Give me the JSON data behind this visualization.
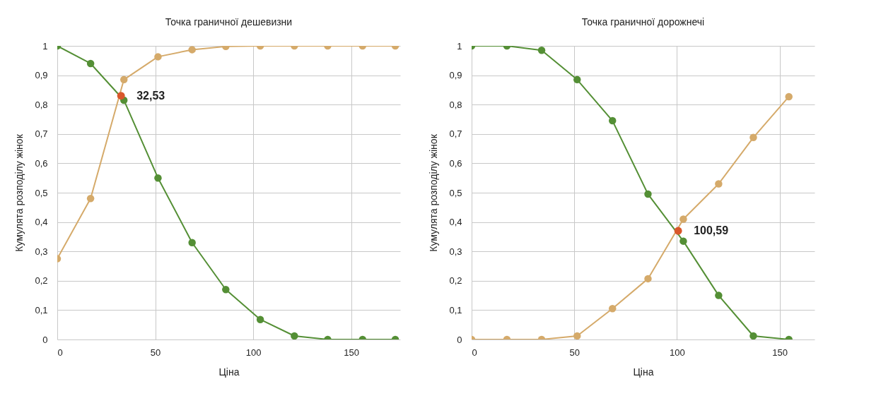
{
  "chart_data": [
    {
      "type": "line",
      "title": "Точка граничної дешевизни",
      "xlabel": "Ціна",
      "ylabel": "Кумулята розподілу жінок",
      "xlim": [
        0,
        175
      ],
      "xticks": [
        0,
        50,
        100,
        150
      ],
      "ylim": [
        0,
        1
      ],
      "yticks": [
        0,
        {
          "value": 0.1,
          "label": "0,1"
        },
        {
          "value": 0.2,
          "label": "0,2"
        },
        {
          "value": 0.3,
          "label": "0,3"
        },
        {
          "value": 0.4,
          "label": "0,4"
        },
        {
          "value": 0.5,
          "label": "0,5"
        },
        {
          "value": 0.6,
          "label": "0,6"
        },
        {
          "value": 0.7,
          "label": "0,7"
        },
        {
          "value": 0.8,
          "label": "0,8"
        },
        {
          "value": 0.9,
          "label": "0,9"
        },
        1
      ],
      "grid": true,
      "marker": "circle",
      "series": [
        {
          "color": "#548f35",
          "x": [
            0,
            17,
            34,
            51.4,
            68.8,
            86,
            103.6,
            121,
            138,
            155.8,
            172.5
          ],
          "values": [
            1,
            0.94,
            0.815,
            0.55,
            0.33,
            0.17,
            0.068,
            0.012,
            0,
            0,
            0
          ]
        },
        {
          "color": "#d5aa6a",
          "x": [
            0,
            17,
            34,
            51.4,
            68.8,
            86,
            103.6,
            121,
            138,
            155.8,
            172.5
          ],
          "values": [
            0.275,
            0.48,
            0.885,
            0.963,
            0.987,
            0.998,
            1,
            1,
            1,
            1,
            1
          ]
        },
        {
          "type": "scatter",
          "color": "#d9572b",
          "x": [
            32.53
          ],
          "values": [
            0.83
          ]
        }
      ],
      "annotations": [
        {
          "text": "32,53",
          "x": 32.53,
          "y": 0.83
        }
      ]
    },
    {
      "type": "line",
      "title": "Точка граничної дорожнечі",
      "xlabel": "Ціна",
      "ylabel": "Кумулята розподілу жінок",
      "xlim": [
        0,
        167
      ],
      "xticks": [
        0,
        50,
        100,
        150
      ],
      "ylim": [
        0,
        1
      ],
      "yticks": [
        0,
        {
          "value": 0.1,
          "label": "0,1"
        },
        {
          "value": 0.2,
          "label": "0,2"
        },
        {
          "value": 0.3,
          "label": "0,3"
        },
        {
          "value": 0.4,
          "label": "0,4"
        },
        {
          "value": 0.5,
          "label": "0,5"
        },
        {
          "value": 0.6,
          "label": "0,6"
        },
        {
          "value": 0.7,
          "label": "0,7"
        },
        {
          "value": 0.8,
          "label": "0,8"
        },
        {
          "value": 0.9,
          "label": "0,9"
        },
        1
      ],
      "grid": true,
      "marker": "circle",
      "series": [
        {
          "color": "#548f35",
          "x": [
            0,
            17.2,
            34.1,
            51.4,
            68.6,
            85.9,
            103.1,
            120.3,
            137.2,
            154.5
          ],
          "values": [
            1,
            1,
            0.985,
            0.885,
            0.745,
            0.495,
            0.335,
            0.15,
            0.012,
            0
          ]
        },
        {
          "color": "#d5aa6a",
          "x": [
            0,
            17.2,
            34.1,
            51.4,
            68.6,
            85.9,
            103.1,
            120.3,
            137.2,
            154.5
          ],
          "values": [
            0,
            0,
            0,
            0.012,
            0.105,
            0.207,
            0.41,
            0.53,
            0.688,
            0.827
          ]
        },
        {
          "type": "scatter",
          "color": "#d9572b",
          "x": [
            100.59
          ],
          "values": [
            0.37
          ]
        }
      ],
      "annotations": [
        {
          "text": "100,59",
          "x": 100.59,
          "y": 0.37
        }
      ]
    }
  ]
}
